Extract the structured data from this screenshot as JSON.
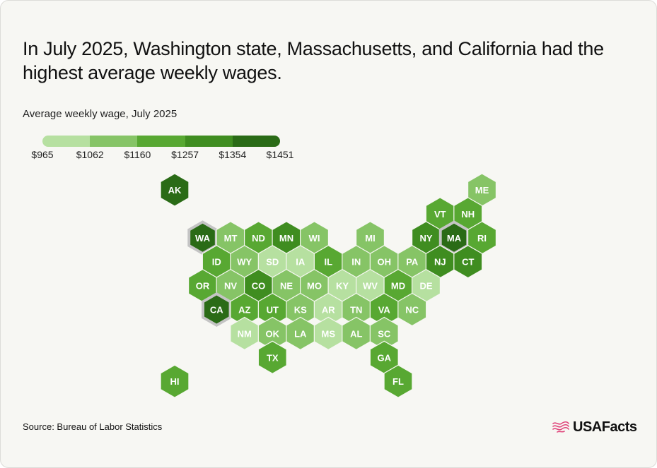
{
  "title": "In July 2025, Washington state, Massachusetts, and California had the highest average weekly wages.",
  "subtitle": "Average weekly wage, July 2025",
  "source": "Source: Bureau of Labor Statistics",
  "brand": "USAFacts",
  "colors": {
    "background": "#f7f7f3",
    "scale": [
      "#b6e0a0",
      "#86c466",
      "#58a832",
      "#3f8d20",
      "#2a6b16"
    ],
    "highlight_ring": "#c4c4c4",
    "brand_icon": "#e0457b"
  },
  "chart_data": {
    "type": "heatmap",
    "subtype": "hex tile map",
    "legend": {
      "ticks": [
        "$965",
        "$1062",
        "$1160",
        "$1257",
        "$1354",
        "$1451"
      ],
      "breaks": [
        965,
        1062,
        1160,
        1257,
        1354,
        1451
      ]
    },
    "highlighted": [
      "WA",
      "MA",
      "CA"
    ],
    "states": [
      {
        "abbr": "AK",
        "row": 0,
        "col": 0,
        "bin": 4
      },
      {
        "abbr": "ME",
        "row": 0,
        "col": 11,
        "bin": 1
      },
      {
        "abbr": "VT",
        "row": 1,
        "col": 9.5,
        "bin": 2
      },
      {
        "abbr": "NH",
        "row": 1,
        "col": 10.5,
        "bin": 2
      },
      {
        "abbr": "WA",
        "row": 2,
        "col": 1,
        "bin": 4
      },
      {
        "abbr": "MT",
        "row": 2,
        "col": 2,
        "bin": 1
      },
      {
        "abbr": "ND",
        "row": 2,
        "col": 3,
        "bin": 2
      },
      {
        "abbr": "MN",
        "row": 2,
        "col": 4,
        "bin": 3
      },
      {
        "abbr": "WI",
        "row": 2,
        "col": 5,
        "bin": 1
      },
      {
        "abbr": "MI",
        "row": 2,
        "col": 7,
        "bin": 1
      },
      {
        "abbr": "NY",
        "row": 2,
        "col": 9,
        "bin": 3
      },
      {
        "abbr": "MA",
        "row": 2,
        "col": 10,
        "bin": 4
      },
      {
        "abbr": "RI",
        "row": 2,
        "col": 11,
        "bin": 2
      },
      {
        "abbr": "ID",
        "row": 3,
        "col": 1.5,
        "bin": 2
      },
      {
        "abbr": "WY",
        "row": 3,
        "col": 2.5,
        "bin": 1
      },
      {
        "abbr": "SD",
        "row": 3,
        "col": 3.5,
        "bin": 0
      },
      {
        "abbr": "IA",
        "row": 3,
        "col": 4.5,
        "bin": 0
      },
      {
        "abbr": "IL",
        "row": 3,
        "col": 5.5,
        "bin": 2
      },
      {
        "abbr": "IN",
        "row": 3,
        "col": 6.5,
        "bin": 1
      },
      {
        "abbr": "OH",
        "row": 3,
        "col": 7.5,
        "bin": 1
      },
      {
        "abbr": "PA",
        "row": 3,
        "col": 8.5,
        "bin": 1
      },
      {
        "abbr": "NJ",
        "row": 3,
        "col": 9.5,
        "bin": 3
      },
      {
        "abbr": "CT",
        "row": 3,
        "col": 10.5,
        "bin": 3
      },
      {
        "abbr": "OR",
        "row": 4,
        "col": 1,
        "bin": 2
      },
      {
        "abbr": "NV",
        "row": 4,
        "col": 2,
        "bin": 1
      },
      {
        "abbr": "CO",
        "row": 4,
        "col": 3,
        "bin": 3
      },
      {
        "abbr": "NE",
        "row": 4,
        "col": 4,
        "bin": 1
      },
      {
        "abbr": "MO",
        "row": 4,
        "col": 5,
        "bin": 1
      },
      {
        "abbr": "KY",
        "row": 4,
        "col": 6,
        "bin": 0
      },
      {
        "abbr": "WV",
        "row": 4,
        "col": 7,
        "bin": 0
      },
      {
        "abbr": "MD",
        "row": 4,
        "col": 8,
        "bin": 2
      },
      {
        "abbr": "DE",
        "row": 4,
        "col": 9,
        "bin": 0
      },
      {
        "abbr": "CA",
        "row": 5,
        "col": 1.5,
        "bin": 4
      },
      {
        "abbr": "AZ",
        "row": 5,
        "col": 2.5,
        "bin": 2
      },
      {
        "abbr": "UT",
        "row": 5,
        "col": 3.5,
        "bin": 2
      },
      {
        "abbr": "KS",
        "row": 5,
        "col": 4.5,
        "bin": 1
      },
      {
        "abbr": "AR",
        "row": 5,
        "col": 5.5,
        "bin": 0
      },
      {
        "abbr": "TN",
        "row": 5,
        "col": 6.5,
        "bin": 1
      },
      {
        "abbr": "VA",
        "row": 5,
        "col": 7.5,
        "bin": 2
      },
      {
        "abbr": "NC",
        "row": 5,
        "col": 8.5,
        "bin": 1
      },
      {
        "abbr": "NM",
        "row": 6,
        "col": 2.5,
        "bin": 0
      },
      {
        "abbr": "OK",
        "row": 6,
        "col": 3.5,
        "bin": 1
      },
      {
        "abbr": "LA",
        "row": 6,
        "col": 4.5,
        "bin": 1
      },
      {
        "abbr": "MS",
        "row": 6,
        "col": 5.5,
        "bin": 0
      },
      {
        "abbr": "AL",
        "row": 6,
        "col": 6.5,
        "bin": 1
      },
      {
        "abbr": "SC",
        "row": 6,
        "col": 7.5,
        "bin": 1
      },
      {
        "abbr": "TX",
        "row": 7,
        "col": 3.5,
        "bin": 2
      },
      {
        "abbr": "GA",
        "row": 7,
        "col": 7.5,
        "bin": 2
      },
      {
        "abbr": "HI",
        "row": 8,
        "col": 0,
        "bin": 2
      },
      {
        "abbr": "FL",
        "row": 8,
        "col": 8,
        "bin": 2
      }
    ]
  }
}
